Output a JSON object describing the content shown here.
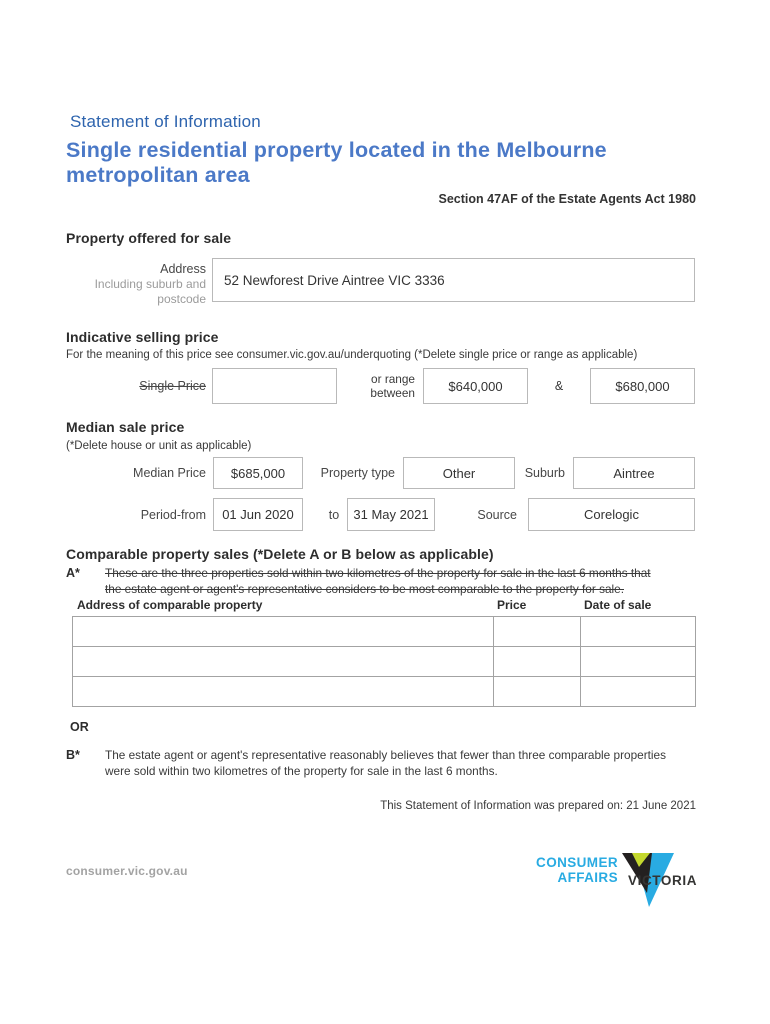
{
  "header": {
    "doc_type": "Statement of Information",
    "title": "Single residential property located in the Melbourne metropolitan area",
    "section_ref": "Section 47AF of the Estate Agents Act 1980"
  },
  "property": {
    "heading": "Property offered for sale",
    "address_label": "Address",
    "address_sublabel": "Including suburb and postcode",
    "address_value": "52 Newforest Drive Aintree VIC 3336"
  },
  "indicative_price": {
    "heading": "Indicative selling price",
    "note": "For the meaning of this price see consumer.vic.gov.au/underquoting (*Delete single price or range as applicable)",
    "single_price_label": "Single Price",
    "single_price_value": "",
    "range_label_line1": "or range",
    "range_label_line2": "between",
    "range_low": "$640,000",
    "ampersand": "&",
    "range_high": "$680,000"
  },
  "median": {
    "heading": "Median sale price",
    "note": "(*Delete house or unit as applicable)",
    "median_price_label": "Median Price",
    "median_price_value": "$685,000",
    "property_type_label": "Property type",
    "property_type_value": "Other",
    "suburb_label": "Suburb",
    "suburb_value": "Aintree",
    "period_label": "Period-from",
    "period_from_value": "01 Jun 2020",
    "to_label": "to",
    "period_to_value": "31 May 2021",
    "source_label": "Source",
    "source_value": "Corelogic"
  },
  "comparable": {
    "heading": "Comparable property sales (*Delete A or B below as applicable)",
    "option_a_label": "A*",
    "option_a_text": "These are the three properties sold within two kilometres of the property for sale in the last 6 months that the estate agent or agent's representative considers to be most comparable to the property for sale.",
    "table": {
      "headers": [
        "Address of comparable property",
        "Price",
        "Date of sale"
      ],
      "rows": [
        [
          "",
          "",
          ""
        ],
        [
          "",
          "",
          ""
        ],
        [
          "",
          "",
          ""
        ]
      ]
    },
    "or_label": "OR",
    "option_b_label": "B*",
    "option_b_text": "The estate agent or agent's representative reasonably believes that fewer than three comparable properties were sold within two kilometres of the property for sale in the last 6 months."
  },
  "footer": {
    "prepared_note": "This Statement of Information was prepared on: 21 June 2021",
    "website": "consumer.vic.gov.au",
    "logo": {
      "line1": "CONSUMER",
      "line2": "AFFAIRS",
      "line3": "VICTORIA",
      "cyan": "#29abe2",
      "lime": "#c4d82e",
      "black": "#232020"
    }
  },
  "colors": {
    "title_blue": "#4b79c7",
    "doc_type_blue": "#2e64ae",
    "body_text": "#3a3a3a",
    "box_border": "#b9b9b9",
    "table_border": "#a3a3a3",
    "muted_gray": "#9b9b9b"
  }
}
